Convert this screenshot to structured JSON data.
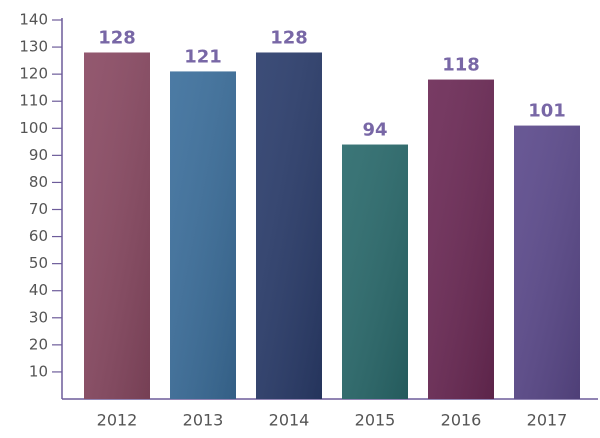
{
  "chart_data": {
    "type": "bar",
    "categories": [
      "2012",
      "2013",
      "2014",
      "2015",
      "2016",
      "2017"
    ],
    "values": [
      128,
      121,
      128,
      94,
      118,
      101
    ],
    "colors": [
      "#8a4a63",
      "#3c6f9c",
      "#2b3d6c",
      "#2a6a6c",
      "#6c2a56",
      "#5c4a8c"
    ],
    "ylim": [
      0,
      140
    ],
    "yticks": [
      10,
      20,
      30,
      40,
      50,
      60,
      70,
      80,
      90,
      100,
      110,
      120,
      130,
      140
    ],
    "grid": false
  }
}
